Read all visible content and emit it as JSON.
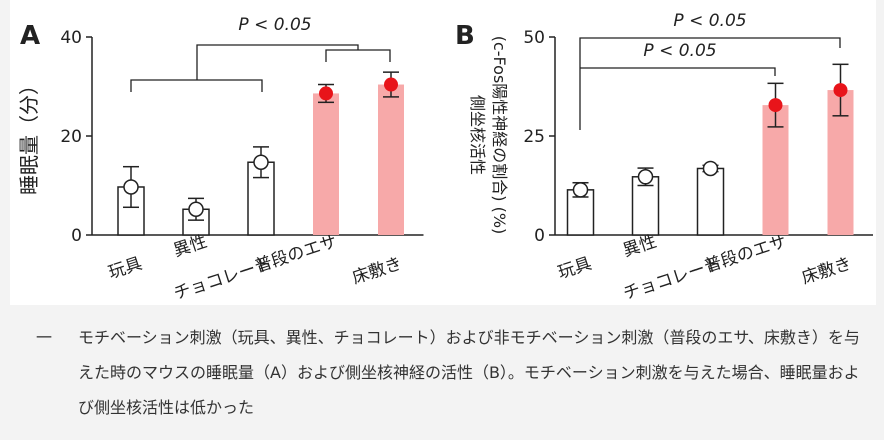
{
  "chart_data": [
    {
      "type": "bar",
      "panel": "A",
      "ylabel": "睡眠量（分）",
      "categories": [
        "玩具",
        "異性",
        "チョコレート",
        "普段のエサ",
        "床敷き"
      ],
      "values": [
        9.7,
        5.2,
        14.7,
        28.6,
        30.4
      ],
      "errors": [
        4.1,
        2.2,
        3.1,
        1.8,
        2.5
      ],
      "colors": [
        "#ffffff",
        "#ffffff",
        "#ffffff",
        "#f7a9a9",
        "#f7a9a9"
      ],
      "marker_colors": [
        "#ffffff",
        "#ffffff",
        "#ffffff",
        "#e8141a",
        "#e8141a"
      ],
      "ylim": [
        0,
        40
      ],
      "yticks": [
        0,
        20,
        40
      ],
      "annotations": [
        "P < 0.05"
      ]
    },
    {
      "type": "bar",
      "panel": "B",
      "ylabel": [
        "側坐核活性",
        "(c-Fos陽性神経の割合) (%)"
      ],
      "categories": [
        "玩具",
        "異性",
        "チョコレート",
        "普段のエサ",
        "床敷き"
      ],
      "values": [
        11.4,
        14.7,
        16.8,
        32.8,
        36.6
      ],
      "errors": [
        1.8,
        2.2,
        0.8,
        5.5,
        6.5
      ],
      "colors": [
        "#ffffff",
        "#ffffff",
        "#ffffff",
        "#f7a9a9",
        "#f7a9a9"
      ],
      "marker_colors": [
        "#ffffff",
        "#ffffff",
        "#ffffff",
        "#e8141a",
        "#e8141a"
      ],
      "ylim": [
        0,
        50
      ],
      "yticks": [
        0,
        25,
        50
      ],
      "annotations": [
        "P < 0.05",
        "P < 0.05"
      ]
    }
  ],
  "caption": {
    "marker": "一",
    "text": "モチベーション刺激（玩具、異性、チョコレート）および非モチベーション刺激（普段のエサ、床敷き）を与えた時のマウスの睡眠量（A）および側坐核神経の活性（B）。モチベーション刺激を与えた場合、睡眠量および側坐核活性は低かった"
  }
}
